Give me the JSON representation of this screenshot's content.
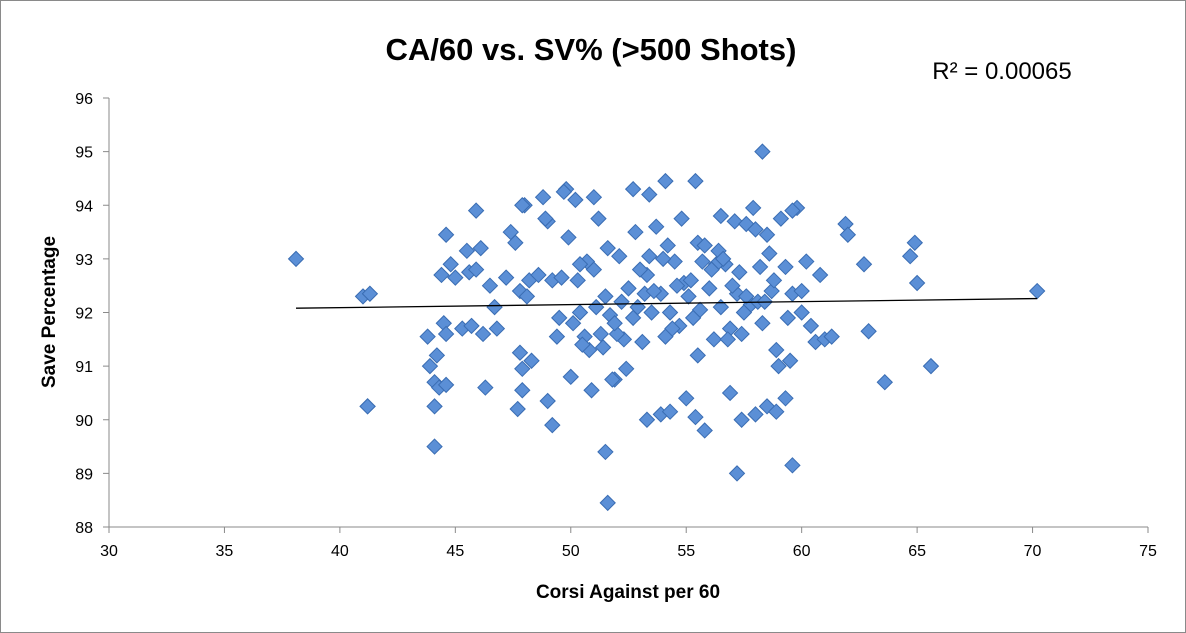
{
  "chart_data": {
    "type": "scatter",
    "title": "CA/60 vs. SV% (>500 Shots)",
    "xlabel": "Corsi Against per 60",
    "ylabel": "Save Percentage",
    "xlim": [
      30,
      75
    ],
    "ylim": [
      88,
      96
    ],
    "xticks": [
      "30",
      "35",
      "40",
      "45",
      "50",
      "55",
      "60",
      "65",
      "70",
      "75"
    ],
    "yticks": [
      "88",
      "89",
      "90",
      "91",
      "92",
      "93",
      "94",
      "95",
      "96"
    ],
    "annotation": "R² = 0.00065",
    "marker_color": "#5b8fd6",
    "marker_edge_color": "#3a6db3",
    "trendline": {
      "type": "linear",
      "x": [
        38.1,
        70.2
      ],
      "y": [
        92.08,
        92.26
      ]
    },
    "grid": false,
    "legend": "none",
    "series": [
      {
        "x": [
          38.1,
          41.0,
          41.3,
          41.2,
          43.8,
          43.9,
          44.1,
          44.2,
          44.4,
          44.5,
          44.6,
          44.1,
          44.3,
          44.6,
          44.8,
          44.6,
          45.0,
          45.3,
          45.5,
          45.6,
          45.7,
          45.9,
          46.1,
          46.2,
          46.3,
          46.5,
          46.7,
          46.8,
          47.2,
          47.4,
          47.6,
          47.8,
          47.9,
          47.8,
          48.0,
          48.2,
          47.7,
          47.9,
          48.1,
          48.3,
          48.6,
          48.8,
          49.0,
          49.2,
          49.4,
          49.6,
          49.8,
          49.9,
          50.1,
          50.2,
          50.4,
          50.6,
          50.7,
          50.8,
          51.0,
          51.2,
          51.4,
          51.5,
          51.6,
          51.7,
          51.9,
          52.1,
          52.3,
          52.5,
          52.7,
          52.8,
          52.9,
          53.1,
          53.3,
          53.4,
          53.5,
          53.7,
          53.9,
          54.1,
          54.2,
          54.3,
          54.5,
          54.7,
          54.9,
          55.1,
          55.3,
          55.5,
          55.6,
          55.8,
          56.0,
          56.2,
          56.4,
          56.5,
          56.7,
          56.9,
          57.1,
          57.2,
          57.4,
          57.6,
          57.8,
          58.0,
          58.2,
          58.3,
          58.5,
          58.7,
          58.9,
          59.1,
          59.3,
          59.5,
          59.6,
          59.8,
          60.0,
          60.2,
          60.4,
          60.6,
          60.8,
          61.0,
          61.3,
          61.9,
          62.0,
          62.7,
          62.9,
          63.6,
          64.7,
          64.9,
          65.0,
          65.6,
          70.2,
          51.6,
          51.5,
          57.2,
          59.6,
          44.1,
          41.2,
          49.2,
          49.0,
          50.0,
          50.9,
          51.8,
          52.4,
          53.3,
          53.9,
          54.3,
          55.0,
          55.4,
          55.8,
          56.9,
          57.4,
          58.0,
          58.5,
          58.9,
          59.3,
          58.3,
          54.1,
          49.7,
          48.9,
          47.9,
          45.9,
          51.0,
          52.7,
          55.4,
          56.5,
          57.9,
          59.6,
          53.4,
          54.8,
          50.4,
          51.1,
          52.0,
          53.0,
          54.0,
          55.2,
          56.3,
          57.0,
          57.6,
          58.1,
          58.8,
          59.4,
          60.0,
          50.5,
          51.3,
          52.2,
          53.2,
          54.4,
          55.5,
          56.1,
          56.8,
          57.5,
          58.4,
          59.0,
          49.5,
          50.3,
          51.9,
          53.6,
          54.6,
          55.7,
          56.6,
          57.3,
          58.6
        ],
        "y": [
          93.0,
          92.3,
          92.35,
          90.25,
          91.55,
          91.0,
          90.7,
          91.2,
          92.7,
          91.8,
          93.45,
          89.5,
          90.6,
          90.65,
          92.9,
          91.6,
          92.65,
          91.7,
          93.15,
          92.75,
          91.75,
          93.9,
          93.2,
          91.6,
          90.6,
          92.5,
          92.1,
          91.7,
          92.65,
          93.5,
          93.3,
          91.25,
          90.95,
          92.4,
          94.0,
          92.6,
          90.2,
          90.55,
          92.3,
          91.1,
          92.7,
          94.15,
          93.7,
          92.6,
          91.55,
          92.65,
          94.3,
          93.4,
          91.8,
          94.1,
          92.0,
          91.55,
          92.95,
          91.3,
          92.8,
          93.75,
          91.35,
          92.3,
          93.2,
          91.95,
          90.75,
          93.05,
          91.5,
          92.45,
          91.9,
          93.5,
          92.1,
          91.45,
          92.7,
          93.05,
          92.0,
          93.6,
          92.35,
          91.55,
          93.25,
          92.0,
          92.95,
          91.75,
          92.55,
          92.3,
          91.9,
          93.3,
          92.05,
          93.25,
          92.45,
          91.5,
          93.15,
          92.1,
          92.9,
          91.7,
          93.7,
          92.35,
          91.6,
          93.65,
          92.15,
          93.55,
          92.85,
          91.8,
          93.45,
          92.4,
          91.3,
          93.75,
          92.85,
          91.1,
          92.35,
          93.95,
          92.0,
          92.95,
          91.75,
          91.45,
          92.7,
          91.5,
          91.55,
          93.65,
          93.45,
          92.9,
          91.65,
          90.7,
          93.05,
          93.3,
          92.55,
          91.0,
          92.4,
          88.45,
          89.4,
          89.0,
          89.15,
          90.25,
          90.25,
          89.9,
          90.35,
          90.8,
          90.55,
          90.75,
          90.95,
          90.0,
          90.1,
          90.15,
          90.4,
          90.05,
          89.8,
          90.5,
          90.0,
          90.1,
          90.25,
          90.15,
          90.4,
          95.0,
          94.45,
          94.25,
          93.75,
          94.0,
          92.8,
          94.15,
          94.3,
          94.45,
          93.8,
          93.95,
          93.9,
          94.2,
          93.75,
          92.9,
          92.1,
          91.6,
          92.8,
          93.0,
          92.6,
          92.9,
          92.5,
          92.3,
          92.2,
          92.6,
          91.9,
          92.4,
          91.4,
          91.6,
          92.2,
          92.35,
          91.7,
          91.2,
          92.8,
          91.5,
          92.0,
          92.2,
          91.0,
          91.9,
          92.6,
          91.8,
          92.4,
          92.5,
          92.95,
          93.0,
          92.75,
          93.1
        ]
      }
    ]
  }
}
